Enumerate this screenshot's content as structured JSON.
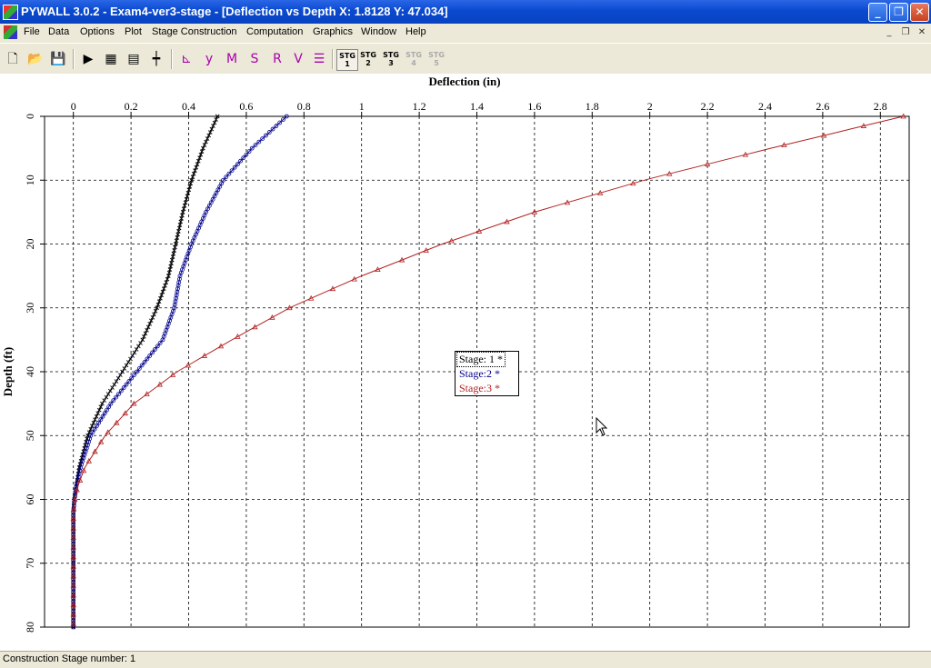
{
  "window": {
    "title": "PYWALL 3.0.2 - Exam4-ver3-stage - [Deflection vs Depth X: 1.8128 Y: 47.034]",
    "minimize_icon": "minimize-icon",
    "restore_icon": "restore-icon",
    "close_icon": "close-icon"
  },
  "menu": {
    "items": [
      "File",
      "Data",
      "Options",
      "Plot",
      "Stage Construction",
      "Computation",
      "Graphics",
      "Window",
      "Help"
    ]
  },
  "toolbar": {
    "buttons": [
      "new-file-icon",
      "open-folder-icon",
      "save-icon",
      "run-icon",
      "graph-icon",
      "report-icon",
      "wall-icon",
      "plot-yp-icon",
      "plot-y-icon",
      "plot-m-icon",
      "plot-s-icon",
      "plot-r-icon",
      "plot-v-icon",
      "plot-stage-icon"
    ],
    "stages": [
      {
        "label": "STG",
        "num": "1",
        "state": "active"
      },
      {
        "label": "STG",
        "num": "2",
        "state": "enabled"
      },
      {
        "label": "STG",
        "num": "3",
        "state": "enabled"
      },
      {
        "label": "STG",
        "num": "4",
        "state": "disabled"
      },
      {
        "label": "STG",
        "num": "5",
        "state": "disabled"
      }
    ]
  },
  "chart_data": {
    "type": "line",
    "xlabel": "Deflection (in)",
    "ylabel": "Depth (ft)",
    "xlim": [
      -0.1,
      2.9
    ],
    "ylim": [
      0,
      80
    ],
    "y_inverted": true,
    "x_axis_position": "top",
    "grid": true,
    "x_ticks": [
      "0",
      "0.2",
      "0.4",
      "0.6",
      "0.8",
      "1",
      "1.2",
      "1.4",
      "1.6",
      "1.8",
      "2",
      "2.2",
      "2.4",
      "2.6",
      "2.8"
    ],
    "y_ticks": [
      "0",
      "10",
      "20",
      "30",
      "40",
      "50",
      "60",
      "70",
      "80"
    ],
    "legend_position": "center",
    "series": [
      {
        "name": "Stage: 1 *",
        "color": "#000000",
        "marker": "x",
        "depth": [
          0,
          5,
          10,
          15,
          20,
          25,
          30,
          35,
          40,
          45,
          50,
          55,
          58,
          60,
          62,
          65,
          70,
          75,
          80
        ],
        "deflection": [
          0.5,
          0.45,
          0.41,
          0.38,
          0.355,
          0.33,
          0.29,
          0.24,
          0.17,
          0.1,
          0.05,
          0.02,
          0.01,
          0.003,
          0.0,
          0.0,
          0.0,
          0.0,
          0.0
        ]
      },
      {
        "name": "Stage:2 *",
        "color": "#00008b",
        "marker": "o",
        "depth": [
          0,
          5,
          10,
          15,
          20,
          25,
          30,
          35,
          40,
          45,
          50,
          55,
          58,
          60,
          62,
          65,
          70,
          75,
          80
        ],
        "deflection": [
          0.74,
          0.62,
          0.52,
          0.46,
          0.41,
          0.37,
          0.35,
          0.31,
          0.22,
          0.13,
          0.06,
          0.025,
          0.01,
          0.004,
          0.0,
          0.0,
          0.0,
          0.0,
          0.0
        ]
      },
      {
        "name": "Stage:3 *",
        "color": "#b22222",
        "marker": "triangle",
        "depth": [
          0,
          5,
          10,
          15,
          20,
          25,
          30,
          35,
          40,
          45,
          50,
          55,
          58,
          60,
          62,
          65,
          70,
          75,
          80
        ],
        "deflection": [
          2.88,
          2.42,
          1.98,
          1.6,
          1.28,
          1.0,
          0.75,
          0.55,
          0.36,
          0.21,
          0.11,
          0.04,
          0.015,
          0.005,
          0.0,
          0.0,
          0.0,
          0.0,
          0.0
        ]
      }
    ]
  },
  "status": {
    "text": "Construction Stage number: 1"
  }
}
